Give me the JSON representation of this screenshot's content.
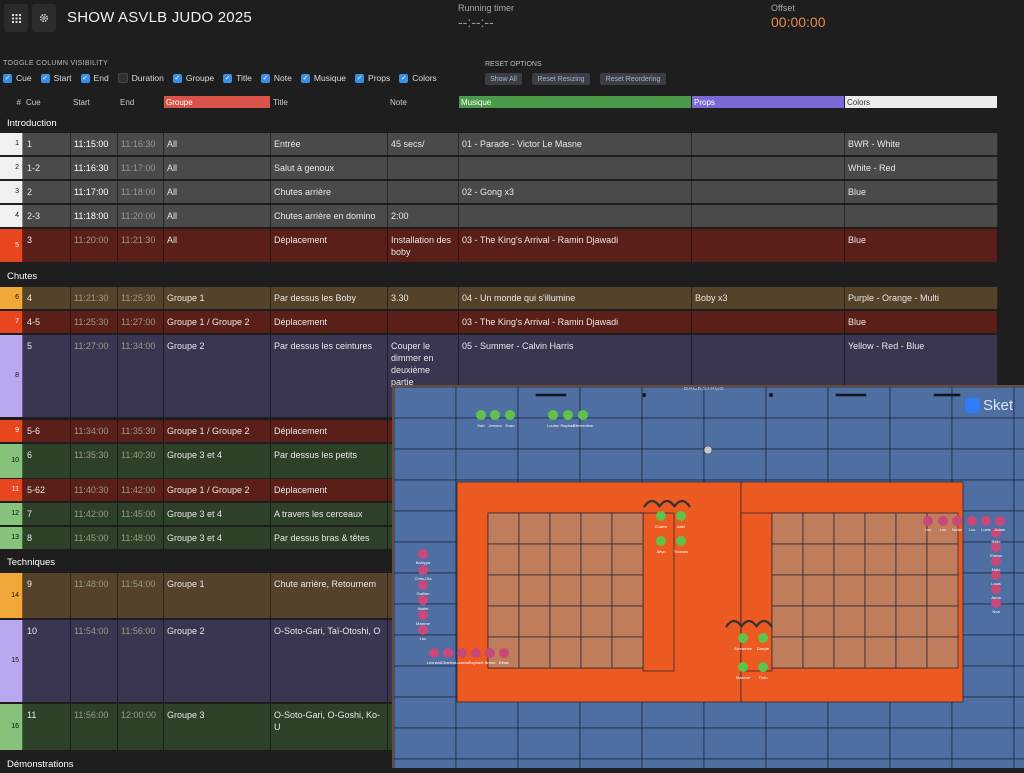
{
  "app": {
    "title": "SHOW ASVLB JUDO 2025"
  },
  "toolbar": {
    "menu_icon": "grid-icon",
    "settings_icon": "gear-icon"
  },
  "timers": {
    "running_label": "Running timer",
    "running_value": "--:--:--",
    "offset_label": "Offset",
    "offset_value": "00:00:00"
  },
  "visibility": {
    "label": "TOGGLE COLUMN VISIBILITY",
    "columns": [
      {
        "label": "Cue",
        "checked": true
      },
      {
        "label": "Start",
        "checked": true
      },
      {
        "label": "End",
        "checked": true
      },
      {
        "label": "Duration",
        "checked": false
      },
      {
        "label": "Groupe",
        "checked": true
      },
      {
        "label": "Title",
        "checked": true
      },
      {
        "label": "Note",
        "checked": true
      },
      {
        "label": "Musique",
        "checked": true
      },
      {
        "label": "Props",
        "checked": true
      },
      {
        "label": "Colors",
        "checked": true
      }
    ]
  },
  "reset": {
    "label": "RESET OPTIONS",
    "show_all": "Show All",
    "reset_resizing": "Reset Resizing",
    "reset_reordering": "Reset Reordering"
  },
  "headers": {
    "num": "#",
    "cue": "Cue",
    "start": "Start",
    "end": "End",
    "groupe": "Groupe",
    "title": "Title",
    "note": "Note",
    "musique": "Musique",
    "props": "Props",
    "colors": "Colors"
  },
  "header_colors": {
    "groupe": "#d9534a",
    "musique": "#4a9a4a",
    "props": "#7b68d6",
    "colors": "#ececec"
  },
  "sections": [
    {
      "name": "Introduction"
    },
    {
      "name": "Chutes"
    },
    {
      "name": "Techniques"
    },
    {
      "name": "Démonstrations"
    }
  ],
  "rows": [
    {
      "idx": "1",
      "cue": "1",
      "start": "11:15:00",
      "end": "11:16:30",
      "groupe": "All",
      "title": "Entrée",
      "note": "45 secs/",
      "musique": "01 - Parade - Victor Le Masne",
      "props": "",
      "colors": "BWR - White",
      "row_color": "#4a4a4a",
      "idx_color": "#f0f0f0"
    },
    {
      "idx": "2",
      "cue": "1-2",
      "start": "11:16:30",
      "end": "11:17:00",
      "groupe": "All",
      "title": "Salut à genoux",
      "note": "",
      "musique": "",
      "props": "",
      "colors": "White - Red",
      "row_color": "#4a4a4a",
      "idx_color": "#f0f0f0"
    },
    {
      "idx": "3",
      "cue": "2",
      "start": "11:17:00",
      "end": "11:18:00",
      "groupe": "All",
      "title": "Chutes arrière",
      "note": "",
      "musique": "02 - Gong x3",
      "props": "",
      "colors": "Blue",
      "row_color": "#4a4a4a",
      "idx_color": "#f0f0f0"
    },
    {
      "idx": "4",
      "cue": "2-3",
      "start": "11:18:00",
      "end": "11:20:00",
      "groupe": "All",
      "title": "Chutes arrière en domino",
      "note": "2:00",
      "musique": "",
      "props": "",
      "colors": "",
      "row_color": "#4a4a4a",
      "idx_color": "#f0f0f0"
    },
    {
      "idx": "5",
      "cue": "3",
      "start": "11:20:00",
      "end": "11:21:30",
      "groupe": "All",
      "title": "Déplacement",
      "note": "Installation des boby",
      "musique": "03 - The King's Arrival - Ramin Djawadi",
      "props": "",
      "colors": "Blue",
      "row_color": "#5a1f18",
      "idx_color": "#e8461e"
    },
    {
      "idx": "6",
      "cue": "4",
      "start": "11:21:30",
      "end": "11:25:30",
      "groupe": "Groupe 1",
      "title": "Par dessus les Boby",
      "note": "3.30",
      "musique": "04 - Un monde qui s'illumine",
      "props": "Boby x3",
      "colors": "Purple - Orange - Multi",
      "row_color": "#54432a",
      "idx_color": "#f2a838"
    },
    {
      "idx": "7",
      "cue": "4-5",
      "start": "11:25:30",
      "end": "11:27:00",
      "groupe": "Groupe 1 / Groupe 2",
      "title": "Déplacement",
      "note": "",
      "musique": "03 - The King's Arrival - Ramin Djawadi",
      "props": "",
      "colors": "Blue",
      "row_color": "#5a1f18",
      "idx_color": "#e8461e"
    },
    {
      "idx": "8",
      "cue": "5",
      "start": "11:27:00",
      "end": "11:34:00",
      "groupe": "Groupe 2",
      "title": "Par dessus les ceintures",
      "note": "Couper le dimmer en deuxième partie",
      "musique": "05 - Summer - Calvin Harris",
      "props": "",
      "colors": "Yellow - Red - Blue",
      "row_color": "#3a3550",
      "idx_color": "#b9a8f0"
    },
    {
      "idx": "9",
      "cue": "5-6",
      "start": "11:34:00",
      "end": "11:35:30",
      "groupe": "Groupe 1 / Groupe 2",
      "title": "Déplacement",
      "note": "",
      "musique": "",
      "props": "",
      "colors": "",
      "row_color": "#5a1f18",
      "idx_color": "#e8461e"
    },
    {
      "idx": "10",
      "cue": "6",
      "start": "11:35:30",
      "end": "11:40:30",
      "groupe": "Groupe 3 et 4",
      "title": "Par dessus les petits",
      "note": "",
      "musique": "",
      "props": "",
      "colors": "",
      "row_color": "#2c4128",
      "idx_color": "#86c27a"
    },
    {
      "idx": "11",
      "cue": "5-62",
      "start": "11:40:30",
      "end": "11:42:00",
      "groupe": "Groupe 1 / Groupe 2",
      "title": "Déplacement",
      "note": "",
      "musique": "",
      "props": "",
      "colors": "",
      "row_color": "#5a1f18",
      "idx_color": "#e8461e"
    },
    {
      "idx": "12",
      "cue": "7",
      "start": "11:42:00",
      "end": "11:45:00",
      "groupe": "Groupe 3 et 4",
      "title": "A travers les cerceaux",
      "note": "",
      "musique": "",
      "props": "",
      "colors": "",
      "row_color": "#2c4128",
      "idx_color": "#86c27a"
    },
    {
      "idx": "13",
      "cue": "8",
      "start": "11:45:00",
      "end": "11:48:00",
      "groupe": "Groupe 3 et 4",
      "title": "Par dessus bras & têtes",
      "note": "",
      "musique": "",
      "props": "",
      "colors": "",
      "row_color": "#2c4128",
      "idx_color": "#86c27a"
    },
    {
      "idx": "14",
      "cue": "9",
      "start": "11:48:00",
      "end": "11:54:00",
      "groupe": "Groupe 1",
      "title": "Chute arrière, Retournem",
      "note": "",
      "musique": "",
      "props": "",
      "colors": "",
      "row_color": "#54432a",
      "idx_color": "#f2a838"
    },
    {
      "idx": "15",
      "cue": "10",
      "start": "11:54:00",
      "end": "11:56:00",
      "groupe": "Groupe 2",
      "title": "O-Soto-Gari, Taï-Otoshi, O",
      "note": "",
      "musique": "",
      "props": "",
      "colors": "",
      "row_color": "#3a3550",
      "idx_color": "#b9a8f0"
    },
    {
      "idx": "16",
      "cue": "11",
      "start": "11:56:00",
      "end": "12:00:00",
      "groupe": "Groupe 3",
      "title": "O-Soto-Gari, O-Goshi, Ko-U",
      "note": "",
      "musique": "",
      "props": "",
      "colors": "",
      "row_color": "#2c4128",
      "idx_color": "#86c27a"
    }
  ],
  "stage_map": {
    "backstage_label": "BACKSTAGE",
    "brand": "Sket",
    "mat_colors": {
      "blue": "#4f6fa3",
      "orange": "#ec5a22",
      "tan": "#bf7d5c"
    },
    "green_people": [
      "Karl",
      "Jemma",
      "Evan",
      "Louise",
      "Raphaël",
      "Clémentine",
      "Charlie",
      "Adel",
      "Aëyn",
      "Thomas",
      "Alexandre",
      "Danyle",
      "Maxime",
      "Théo"
    ],
    "pink_left": [
      "Bahiyya",
      "Chris-Ola",
      "Gaëlan",
      "Nathé",
      "Maxime",
      "Lou"
    ],
    "pink_bottom": [
      "Léonard",
      "Charles",
      "Ludovic",
      "Raphaël",
      "Bruno",
      "Ethan"
    ],
    "pink_top_right": [
      "Lou",
      "Lou",
      "Nolan",
      "Lou",
      "Lucie",
      "Adam"
    ],
    "pink_right": [
      "Bella",
      "Emma",
      "Malo",
      "Louis",
      "Anna",
      "Noa"
    ]
  }
}
